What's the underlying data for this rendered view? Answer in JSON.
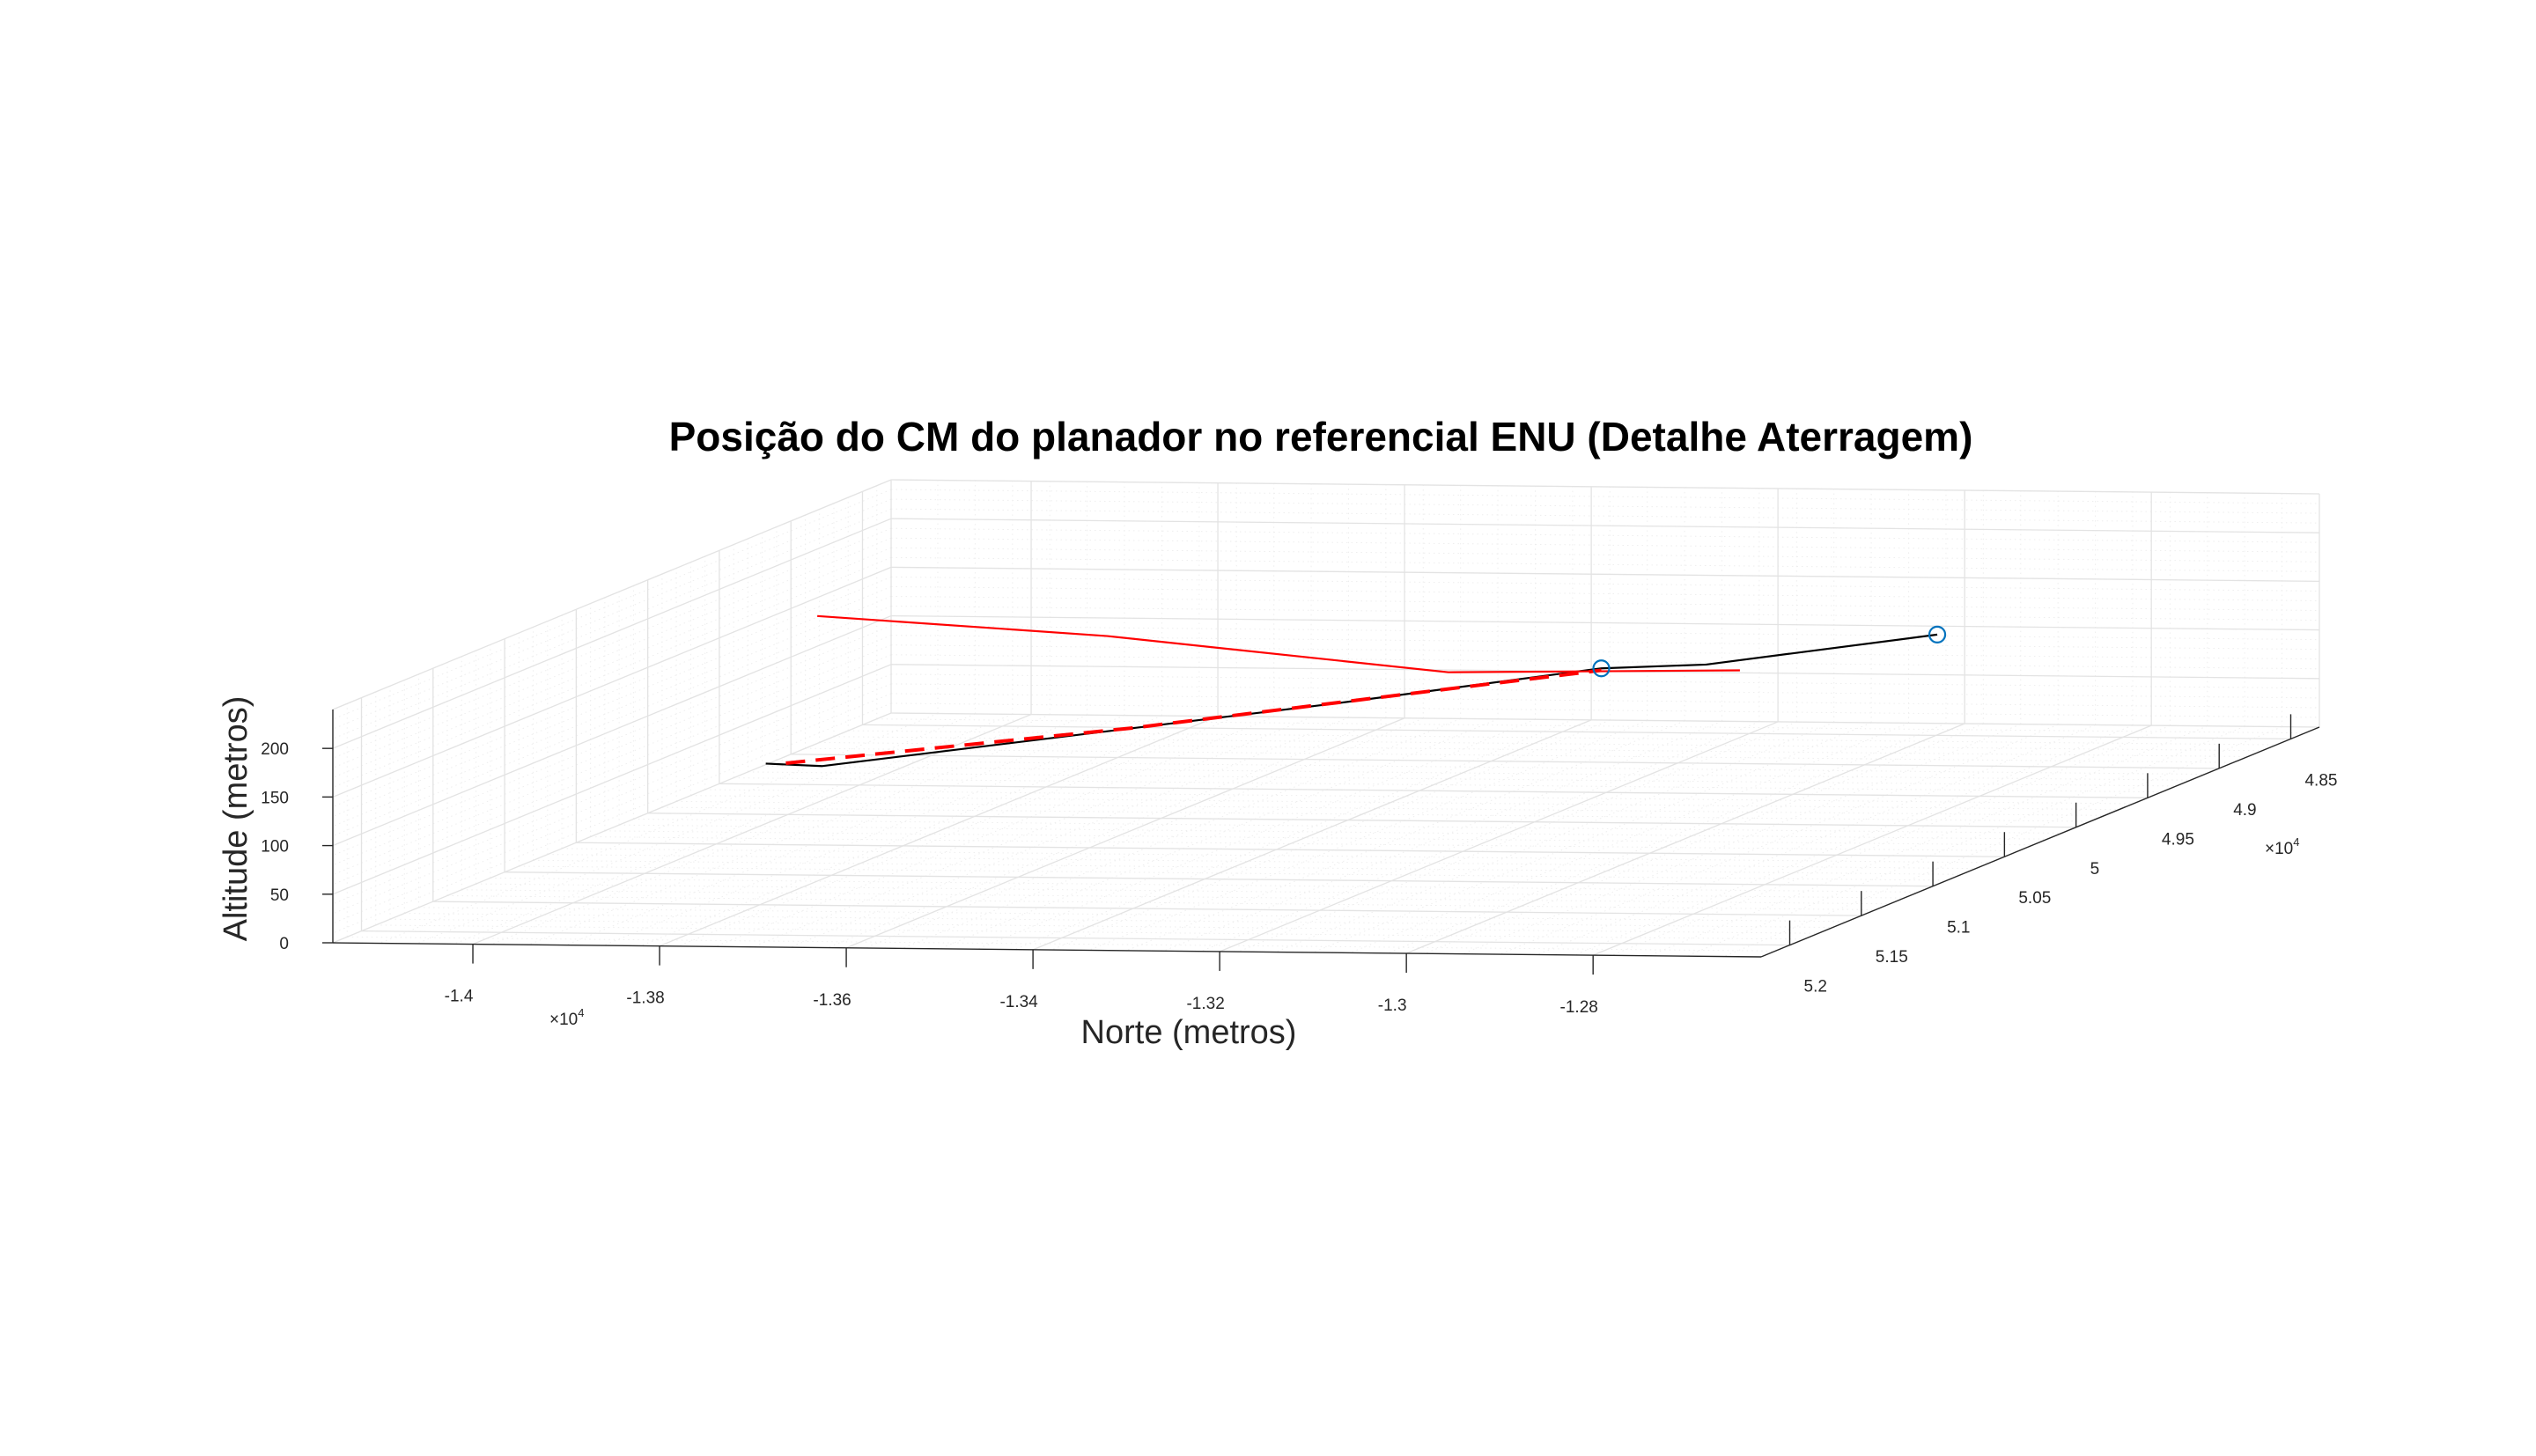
{
  "chart_data": {
    "type": "line",
    "projection": "3d",
    "title": "Posição do CM do planador no referencial ENU (Detalhe Aterragem)",
    "xlabel": "Norte (metros)",
    "ylabel": "",
    "zlabel": "Altitude (metros)",
    "grid": true,
    "minor_grid": true,
    "legend": "none",
    "x_axis": {
      "ticks": [
        -14000,
        -13800,
        -13600,
        -13400,
        -13200,
        -13000,
        -12800
      ],
      "tick_labels": [
        "-1.4",
        "-1.38",
        "-1.36",
        "-1.34",
        "-1.32",
        "-1.3",
        "-1.28"
      ],
      "exponent": "×10",
      "exponent_power": "4",
      "lim": [
        -14150,
        -12620
      ]
    },
    "y_axis": {
      "ticks": [
        48500,
        49000,
        49500,
        50000,
        50500,
        51000,
        51500,
        52000
      ],
      "tick_labels": [
        "4.85",
        "4.9",
        "4.95",
        "5",
        "5.05",
        "5.1",
        "5.15",
        "5.2"
      ],
      "exponent": "×10",
      "exponent_power": "4",
      "lim": [
        48300,
        52200
      ]
    },
    "z_axis": {
      "ticks": [
        0,
        50,
        100,
        150,
        200
      ],
      "tick_labels": [
        "0",
        "50",
        "100",
        "150",
        "200"
      ],
      "lim": [
        0,
        240
      ]
    },
    "series": [
      {
        "role": "trajectory",
        "color": "#000000",
        "dash": "solid",
        "points": [
          {
            "x": -13950,
            "y": 50480,
            "z": 82
          },
          {
            "x": -13890,
            "y": 50480,
            "z": 80
          },
          {
            "x": -13400,
            "y": 50080,
            "z": 125
          },
          {
            "x": -13150,
            "y": 49860,
            "z": 150
          },
          {
            "x": -13050,
            "y": 49780,
            "z": 150
          },
          {
            "x": -12830,
            "y": 49600,
            "z": 172
          }
        ]
      },
      {
        "role": "reference",
        "color": "#ff0000",
        "dash": "solid",
        "points": [
          {
            "x": -13950,
            "y": 50120,
            "z": 212
          },
          {
            "x": -13650,
            "y": 50050,
            "z": 190
          },
          {
            "x": -13300,
            "y": 49950,
            "z": 150
          },
          {
            "x": -13000,
            "y": 49870,
            "z": 150
          }
        ]
      },
      {
        "role": "reference",
        "color": "#ff0000",
        "dash": "dashed",
        "points": [
          {
            "x": -13930,
            "y": 50470,
            "z": 82
          },
          {
            "x": -13600,
            "y": 50200,
            "z": 105
          },
          {
            "x": -13300,
            "y": 50000,
            "z": 135
          },
          {
            "x": -13150,
            "y": 49860,
            "z": 148
          }
        ]
      }
    ],
    "markers": [
      {
        "color": "#0072bd",
        "shape": "circle",
        "x": -13150,
        "y": 49860,
        "z": 150
      },
      {
        "color": "#0072bd",
        "shape": "circle",
        "x": -12830,
        "y": 49600,
        "z": 172
      }
    ],
    "colors": {
      "trajectory": "#000000",
      "reference": "#ff0000",
      "marker": "#0072bd",
      "grid": "#e3e3e3",
      "axis": "#262626"
    }
  }
}
